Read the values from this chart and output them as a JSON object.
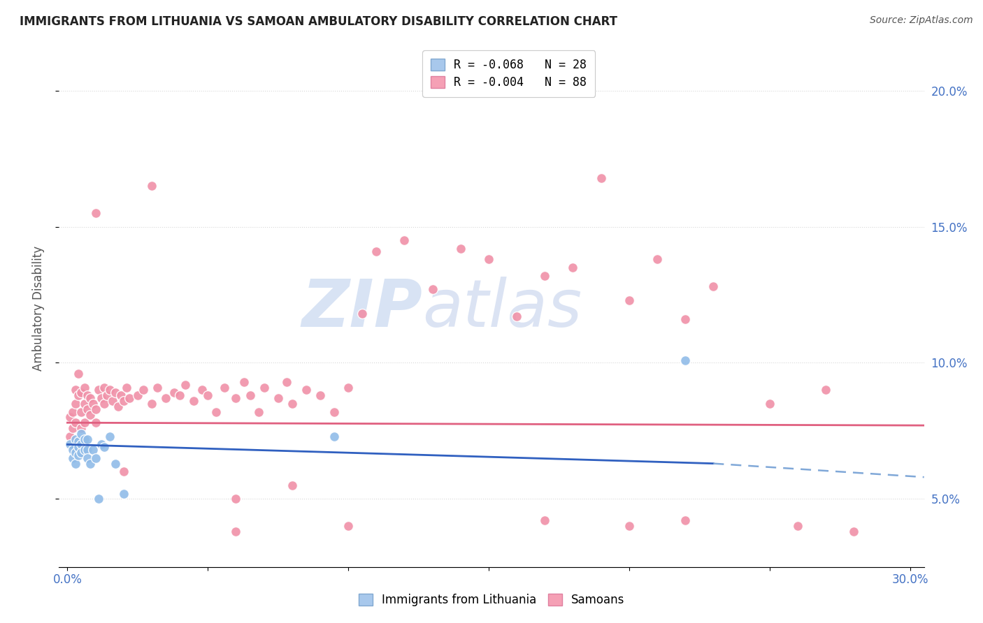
{
  "title": "IMMIGRANTS FROM LITHUANIA VS SAMOAN AMBULATORY DISABILITY CORRELATION CHART",
  "source": "Source: ZipAtlas.com",
  "ylabel": "Ambulatory Disability",
  "xlim": [
    -0.003,
    0.305
  ],
  "ylim": [
    0.025,
    0.215
  ],
  "xticks": [
    0.0,
    0.05,
    0.1,
    0.15,
    0.2,
    0.25,
    0.3
  ],
  "xticklabels": [
    "0.0%",
    "",
    "",
    "",
    "",
    "",
    "30.0%"
  ],
  "yticks_right": [
    0.05,
    0.1,
    0.15,
    0.2
  ],
  "ytick_right_labels": [
    "5.0%",
    "10.0%",
    "15.0%",
    "20.0%"
  ],
  "legend_entries": [
    {
      "label": "R = -0.068   N = 28",
      "color": "#a8c8ec"
    },
    {
      "label": "R = -0.004   N = 88",
      "color": "#f5a0b5"
    }
  ],
  "legend_labels_bottom": [
    "Immigrants from Lithuania",
    "Samoans"
  ],
  "color_blue": "#90bce8",
  "color_pink": "#f090a8",
  "trendline_blue_solid_color": "#3060c0",
  "trendline_blue_dash_color": "#80a8d8",
  "trendline_pink_color": "#e06080",
  "watermark_zip": "ZIP",
  "watermark_atlas": "atlas",
  "watermark_color": "#c8d8f0",
  "background_color": "#ffffff",
  "grid_color": "#d8d8d8",
  "blue_points_x": [
    0.001,
    0.002,
    0.002,
    0.003,
    0.003,
    0.003,
    0.004,
    0.004,
    0.004,
    0.005,
    0.005,
    0.005,
    0.006,
    0.006,
    0.007,
    0.007,
    0.007,
    0.008,
    0.009,
    0.01,
    0.011,
    0.012,
    0.013,
    0.015,
    0.017,
    0.02,
    0.095,
    0.22
  ],
  "blue_points_y": [
    0.07,
    0.068,
    0.065,
    0.072,
    0.067,
    0.063,
    0.071,
    0.066,
    0.069,
    0.074,
    0.07,
    0.067,
    0.072,
    0.068,
    0.072,
    0.068,
    0.065,
    0.063,
    0.068,
    0.065,
    0.05,
    0.07,
    0.069,
    0.073,
    0.063,
    0.052,
    0.073,
    0.101
  ],
  "pink_points_x": [
    0.001,
    0.001,
    0.002,
    0.002,
    0.003,
    0.003,
    0.003,
    0.004,
    0.004,
    0.005,
    0.005,
    0.005,
    0.006,
    0.006,
    0.006,
    0.007,
    0.007,
    0.008,
    0.008,
    0.009,
    0.01,
    0.01,
    0.011,
    0.012,
    0.013,
    0.013,
    0.014,
    0.015,
    0.016,
    0.017,
    0.018,
    0.019,
    0.02,
    0.021,
    0.022,
    0.025,
    0.027,
    0.03,
    0.032,
    0.035,
    0.038,
    0.04,
    0.042,
    0.045,
    0.048,
    0.05,
    0.053,
    0.056,
    0.06,
    0.063,
    0.065,
    0.068,
    0.07,
    0.075,
    0.078,
    0.08,
    0.085,
    0.09,
    0.095,
    0.1,
    0.105,
    0.11,
    0.12,
    0.13,
    0.14,
    0.15,
    0.16,
    0.17,
    0.18,
    0.19,
    0.2,
    0.21,
    0.22,
    0.23,
    0.25,
    0.27,
    0.01,
    0.02,
    0.06,
    0.08,
    0.1,
    0.17,
    0.2,
    0.22,
    0.26,
    0.28,
    0.03,
    0.06
  ],
  "pink_points_y": [
    0.073,
    0.08,
    0.082,
    0.076,
    0.09,
    0.085,
    0.078,
    0.096,
    0.088,
    0.089,
    0.082,
    0.076,
    0.085,
    0.091,
    0.078,
    0.088,
    0.083,
    0.087,
    0.081,
    0.085,
    0.083,
    0.078,
    0.09,
    0.087,
    0.091,
    0.085,
    0.088,
    0.09,
    0.086,
    0.089,
    0.084,
    0.088,
    0.086,
    0.091,
    0.087,
    0.088,
    0.09,
    0.085,
    0.091,
    0.087,
    0.089,
    0.088,
    0.092,
    0.086,
    0.09,
    0.088,
    0.082,
    0.091,
    0.087,
    0.093,
    0.088,
    0.082,
    0.091,
    0.087,
    0.093,
    0.085,
    0.09,
    0.088,
    0.082,
    0.091,
    0.118,
    0.141,
    0.145,
    0.127,
    0.142,
    0.138,
    0.117,
    0.132,
    0.135,
    0.168,
    0.123,
    0.138,
    0.116,
    0.128,
    0.085,
    0.09,
    0.155,
    0.06,
    0.05,
    0.055,
    0.04,
    0.042,
    0.04,
    0.042,
    0.04,
    0.038,
    0.165,
    0.038
  ],
  "blue_trend_x_start": 0.0,
  "blue_trend_x_solid_end": 0.23,
  "blue_trend_x_dash_end": 0.305,
  "blue_trend_y_start": 0.07,
  "blue_trend_y_solid_end": 0.063,
  "blue_trend_y_dash_end": 0.058,
  "pink_trend_x_start": 0.0,
  "pink_trend_x_end": 0.305,
  "pink_trend_y_start": 0.078,
  "pink_trend_y_end": 0.077
}
